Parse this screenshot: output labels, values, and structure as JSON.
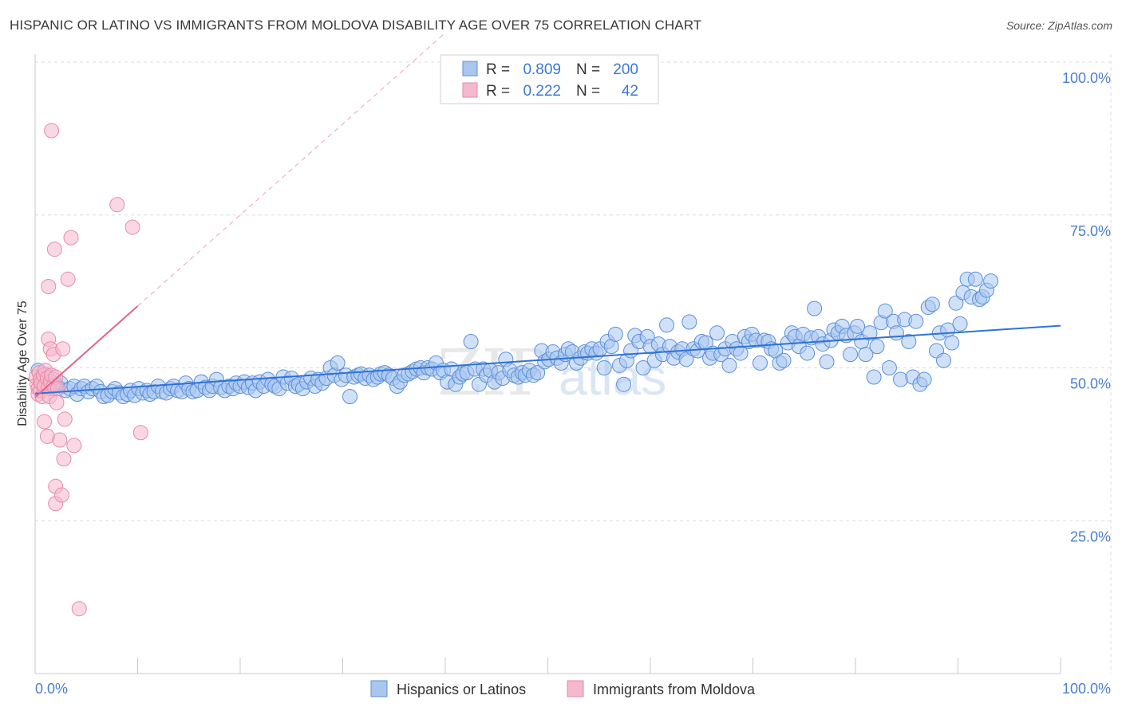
{
  "header": {
    "title": "HISPANIC OR LATINO VS IMMIGRANTS FROM MOLDOVA DISABILITY AGE OVER 75 CORRELATION CHART",
    "source": "Source: ZipAtlas.com"
  },
  "watermark": {
    "zip": "ZIP",
    "atlas": "atlas"
  },
  "colors": {
    "blue_fill": "#a9c6f0",
    "blue_stroke": "#5b8fd9",
    "blue_line": "#2f72d6",
    "pink_fill": "#f6b8cc",
    "pink_stroke": "#e98aa8",
    "pink_line": "#e0658e",
    "grid": "#dcdcdc",
    "tick_text": "#4a7fd1"
  },
  "stats_box": {
    "rows": [
      {
        "r_label": "R =",
        "r_value": "0.809",
        "n_label": "N =",
        "n_value": "200"
      },
      {
        "r_label": "R =",
        "r_value": "0.222",
        "n_label": "N =",
        "n_value": "42"
      }
    ]
  },
  "legend": {
    "items": [
      {
        "label": "Hispanics or Latinos"
      },
      {
        "label": "Immigrants from Moldova"
      }
    ]
  },
  "chart_data": {
    "type": "scatter",
    "title": "HISPANIC OR LATINO VS IMMIGRANTS FROM MOLDOVA DISABILITY AGE OVER 75 CORRELATION CHART",
    "xlabel": "",
    "ylabel": "Disability Age Over 75",
    "xlim": [
      0,
      100
    ],
    "ylim": [
      0,
      100
    ],
    "x_tick_labels": [
      "0.0%",
      "100.0%"
    ],
    "y_tick_labels": [
      "100.0%",
      "75.0%",
      "50.0%",
      "25.0%"
    ],
    "y_ticks": [
      100,
      75,
      50,
      25
    ],
    "grid": true,
    "legend_position": "bottom",
    "series": [
      {
        "name": "Hispanics or Latinos",
        "color": "#a9c6f0",
        "trend": {
          "x": [
            0,
            100
          ],
          "y": [
            45.8,
            56.9
          ]
        },
        "points": [
          [
            0.3,
            49.6
          ],
          [
            0.5,
            47.7
          ],
          [
            0.8,
            48.1
          ],
          [
            1.0,
            48.9
          ],
          [
            1.3,
            47.0
          ],
          [
            1.5,
            46.6
          ],
          [
            1.8,
            48.1
          ],
          [
            2.0,
            47.3
          ],
          [
            2.3,
            46.8
          ],
          [
            2.5,
            47.5
          ],
          [
            3.0,
            46.3
          ],
          [
            3.4,
            46.6
          ],
          [
            3.8,
            47.0
          ],
          [
            4.1,
            45.7
          ],
          [
            4.5,
            46.6
          ],
          [
            4.8,
            47.0
          ],
          [
            5.2,
            46.1
          ],
          [
            5.6,
            46.6
          ],
          [
            6.0,
            47.0
          ],
          [
            6.4,
            46.1
          ],
          [
            6.7,
            45.3
          ],
          [
            7.1,
            45.5
          ],
          [
            7.5,
            46.1
          ],
          [
            7.8,
            46.6
          ],
          [
            8.2,
            45.9
          ],
          [
            8.6,
            45.3
          ],
          [
            9.0,
            45.7
          ],
          [
            9.3,
            46.3
          ],
          [
            9.7,
            45.5
          ],
          [
            10.1,
            46.6
          ],
          [
            10.5,
            45.9
          ],
          [
            10.9,
            46.3
          ],
          [
            11.2,
            45.7
          ],
          [
            11.6,
            46.1
          ],
          [
            12.0,
            47.0
          ],
          [
            12.4,
            46.1
          ],
          [
            12.8,
            45.9
          ],
          [
            13.2,
            46.6
          ],
          [
            13.5,
            47.0
          ],
          [
            13.9,
            46.3
          ],
          [
            14.3,
            46.1
          ],
          [
            14.7,
            47.5
          ],
          [
            15.0,
            46.6
          ],
          [
            15.4,
            46.1
          ],
          [
            15.8,
            46.3
          ],
          [
            16.2,
            47.7
          ],
          [
            16.6,
            46.8
          ],
          [
            17.0,
            46.3
          ],
          [
            17.3,
            47.0
          ],
          [
            17.7,
            48.1
          ],
          [
            18.1,
            46.8
          ],
          [
            18.5,
            46.3
          ],
          [
            18.9,
            47.0
          ],
          [
            19.3,
            46.6
          ],
          [
            19.6,
            47.5
          ],
          [
            20.0,
            47.0
          ],
          [
            20.4,
            47.7
          ],
          [
            20.8,
            46.8
          ],
          [
            21.2,
            47.5
          ],
          [
            21.5,
            46.3
          ],
          [
            21.9,
            47.7
          ],
          [
            22.3,
            47.0
          ],
          [
            22.7,
            48.1
          ],
          [
            23.1,
            47.3
          ],
          [
            23.4,
            47.0
          ],
          [
            23.8,
            46.6
          ],
          [
            24.2,
            48.5
          ],
          [
            24.6,
            47.5
          ],
          [
            25.0,
            48.3
          ],
          [
            25.4,
            47.0
          ],
          [
            25.7,
            47.3
          ],
          [
            26.1,
            46.6
          ],
          [
            26.5,
            47.7
          ],
          [
            26.9,
            48.3
          ],
          [
            27.3,
            47.0
          ],
          [
            27.6,
            48.1
          ],
          [
            28.0,
            47.5
          ],
          [
            28.4,
            48.3
          ],
          [
            28.8,
            50.0
          ],
          [
            29.2,
            48.8
          ],
          [
            29.5,
            50.8
          ],
          [
            29.9,
            48.1
          ],
          [
            30.3,
            48.8
          ],
          [
            30.7,
            45.3
          ],
          [
            31.1,
            48.5
          ],
          [
            31.5,
            48.8
          ],
          [
            31.8,
            49.0
          ],
          [
            32.2,
            48.3
          ],
          [
            32.6,
            48.8
          ],
          [
            33.0,
            48.1
          ],
          [
            33.4,
            48.5
          ],
          [
            33.7,
            49.0
          ],
          [
            34.1,
            49.2
          ],
          [
            34.5,
            48.8
          ],
          [
            34.9,
            48.3
          ],
          [
            35.3,
            47.0
          ],
          [
            35.6,
            47.7
          ],
          [
            36.0,
            48.8
          ],
          [
            36.4,
            49.0
          ],
          [
            36.8,
            49.4
          ],
          [
            37.2,
            49.8
          ],
          [
            37.6,
            50.0
          ],
          [
            37.9,
            49.2
          ],
          [
            38.3,
            50.0
          ],
          [
            38.7,
            49.8
          ],
          [
            39.1,
            50.8
          ],
          [
            39.5,
            49.2
          ],
          [
            39.8,
            49.6
          ],
          [
            40.2,
            47.7
          ],
          [
            40.6,
            49.8
          ],
          [
            41.0,
            47.3
          ],
          [
            41.4,
            48.5
          ],
          [
            41.7,
            49.0
          ],
          [
            42.1,
            49.2
          ],
          [
            42.5,
            54.3
          ],
          [
            42.9,
            49.8
          ],
          [
            43.3,
            47.3
          ],
          [
            43.7,
            49.8
          ],
          [
            44.0,
            48.8
          ],
          [
            44.4,
            49.6
          ],
          [
            44.8,
            47.7
          ],
          [
            45.2,
            49.2
          ],
          [
            45.6,
            48.3
          ],
          [
            45.9,
            51.4
          ],
          [
            46.3,
            49.6
          ],
          [
            46.7,
            48.8
          ],
          [
            47.1,
            48.5
          ],
          [
            47.5,
            49.2
          ],
          [
            47.8,
            48.8
          ],
          [
            48.2,
            49.6
          ],
          [
            48.6,
            48.8
          ],
          [
            49.0,
            49.2
          ],
          [
            49.4,
            52.8
          ],
          [
            49.7,
            51.0
          ],
          [
            50.1,
            51.4
          ],
          [
            50.5,
            52.6
          ],
          [
            50.9,
            51.6
          ],
          [
            51.3,
            50.8
          ],
          [
            51.7,
            52.2
          ],
          [
            52.0,
            53.1
          ],
          [
            52.4,
            52.6
          ],
          [
            52.8,
            50.8
          ],
          [
            53.2,
            51.6
          ],
          [
            53.6,
            52.6
          ],
          [
            53.9,
            52.4
          ],
          [
            54.3,
            53.1
          ],
          [
            54.7,
            52.4
          ],
          [
            55.1,
            53.1
          ],
          [
            55.5,
            50.0
          ],
          [
            55.8,
            54.3
          ],
          [
            56.2,
            53.5
          ],
          [
            56.6,
            55.5
          ],
          [
            57.0,
            50.4
          ],
          [
            57.4,
            47.3
          ],
          [
            57.7,
            51.2
          ],
          [
            58.1,
            52.8
          ],
          [
            58.5,
            55.3
          ],
          [
            58.9,
            54.3
          ],
          [
            59.3,
            50.0
          ],
          [
            59.7,
            55.1
          ],
          [
            60.0,
            53.5
          ],
          [
            60.4,
            51.2
          ],
          [
            60.8,
            53.9
          ],
          [
            61.2,
            52.2
          ],
          [
            61.6,
            57.0
          ],
          [
            61.9,
            53.5
          ],
          [
            62.3,
            51.6
          ],
          [
            62.7,
            52.6
          ],
          [
            63.1,
            53.1
          ],
          [
            63.5,
            51.4
          ],
          [
            63.8,
            57.5
          ],
          [
            64.2,
            53.1
          ],
          [
            64.6,
            52.8
          ],
          [
            65.0,
            54.3
          ],
          [
            65.4,
            54.1
          ],
          [
            65.8,
            51.6
          ],
          [
            66.1,
            52.4
          ],
          [
            66.5,
            55.7
          ],
          [
            66.9,
            52.2
          ],
          [
            67.3,
            53.1
          ],
          [
            67.7,
            50.4
          ],
          [
            68.0,
            54.3
          ],
          [
            68.4,
            53.1
          ],
          [
            68.8,
            52.4
          ],
          [
            69.2,
            55.1
          ],
          [
            69.6,
            54.3
          ],
          [
            69.9,
            55.5
          ],
          [
            70.3,
            54.5
          ],
          [
            70.7,
            50.8
          ],
          [
            71.1,
            54.5
          ],
          [
            71.5,
            54.3
          ],
          [
            71.8,
            53.1
          ],
          [
            72.2,
            52.8
          ],
          [
            72.6,
            50.8
          ],
          [
            73.0,
            51.2
          ],
          [
            73.4,
            54.1
          ],
          [
            73.8,
            55.7
          ],
          [
            74.1,
            55.1
          ],
          [
            74.5,
            53.5
          ],
          [
            74.9,
            55.5
          ],
          [
            75.3,
            52.4
          ],
          [
            75.7,
            54.9
          ],
          [
            76.0,
            59.7
          ],
          [
            76.4,
            55.1
          ],
          [
            76.8,
            53.9
          ],
          [
            77.2,
            51.0
          ],
          [
            77.6,
            54.5
          ],
          [
            77.9,
            56.2
          ],
          [
            78.3,
            55.7
          ],
          [
            78.7,
            56.8
          ],
          [
            79.1,
            55.3
          ],
          [
            79.5,
            52.2
          ],
          [
            79.9,
            55.7
          ],
          [
            80.2,
            56.8
          ],
          [
            80.6,
            54.3
          ],
          [
            81.0,
            52.2
          ],
          [
            81.4,
            55.7
          ],
          [
            81.8,
            48.5
          ],
          [
            82.1,
            53.5
          ],
          [
            82.5,
            57.4
          ],
          [
            82.9,
            59.3
          ],
          [
            83.3,
            50.0
          ],
          [
            83.7,
            57.6
          ],
          [
            84.0,
            55.7
          ],
          [
            84.4,
            48.1
          ],
          [
            84.8,
            57.9
          ],
          [
            85.2,
            54.3
          ],
          [
            85.6,
            48.5
          ],
          [
            85.9,
            57.6
          ],
          [
            86.3,
            47.3
          ],
          [
            86.7,
            48.1
          ],
          [
            87.1,
            59.9
          ],
          [
            87.5,
            60.4
          ],
          [
            87.9,
            52.8
          ],
          [
            88.2,
            55.7
          ],
          [
            88.6,
            51.2
          ],
          [
            89.0,
            56.2
          ],
          [
            89.4,
            54.1
          ],
          [
            89.8,
            60.6
          ],
          [
            90.2,
            57.2
          ],
          [
            90.5,
            62.3
          ],
          [
            90.9,
            64.5
          ],
          [
            91.3,
            61.6
          ],
          [
            91.7,
            64.5
          ],
          [
            92.1,
            61.2
          ],
          [
            92.4,
            61.6
          ],
          [
            92.8,
            62.7
          ],
          [
            93.2,
            64.2
          ]
        ]
      },
      {
        "name": "Immigrants from Moldova",
        "color": "#f6b8cc",
        "trend": {
          "x": [
            0,
            10
          ],
          "y": [
            45.2,
            60.1
          ]
        },
        "trend_dashed_to": {
          "x": 40,
          "y": 104.8
        },
        "points": [
          [
            0.1,
            48.5
          ],
          [
            0.2,
            47.3
          ],
          [
            0.3,
            46.6
          ],
          [
            0.3,
            45.7
          ],
          [
            0.4,
            49.2
          ],
          [
            0.5,
            48.1
          ],
          [
            0.5,
            46.3
          ],
          [
            0.6,
            47.5
          ],
          [
            0.7,
            45.3
          ],
          [
            0.8,
            48.8
          ],
          [
            0.9,
            47.0
          ],
          [
            1.0,
            49.6
          ],
          [
            1.2,
            48.3
          ],
          [
            1.3,
            46.8
          ],
          [
            1.4,
            45.3
          ],
          [
            1.5,
            47.7
          ],
          [
            1.6,
            48.8
          ],
          [
            1.8,
            47.0
          ],
          [
            2.0,
            48.5
          ],
          [
            2.2,
            46.6
          ],
          [
            0.9,
            41.2
          ],
          [
            1.2,
            38.8
          ],
          [
            1.3,
            54.7
          ],
          [
            1.5,
            53.1
          ],
          [
            1.3,
            63.3
          ],
          [
            1.6,
            88.8
          ],
          [
            1.8,
            52.2
          ],
          [
            1.9,
            69.4
          ],
          [
            2.1,
            44.3
          ],
          [
            2.0,
            30.6
          ],
          [
            2.0,
            27.8
          ],
          [
            2.4,
            38.2
          ],
          [
            2.6,
            29.2
          ],
          [
            2.7,
            53.1
          ],
          [
            2.8,
            35.1
          ],
          [
            2.9,
            41.6
          ],
          [
            3.2,
            64.5
          ],
          [
            3.5,
            71.3
          ],
          [
            3.8,
            37.3
          ],
          [
            4.3,
            10.6
          ],
          [
            8.0,
            76.7
          ],
          [
            9.5,
            73.0
          ],
          [
            10.3,
            39.4
          ]
        ]
      }
    ]
  }
}
